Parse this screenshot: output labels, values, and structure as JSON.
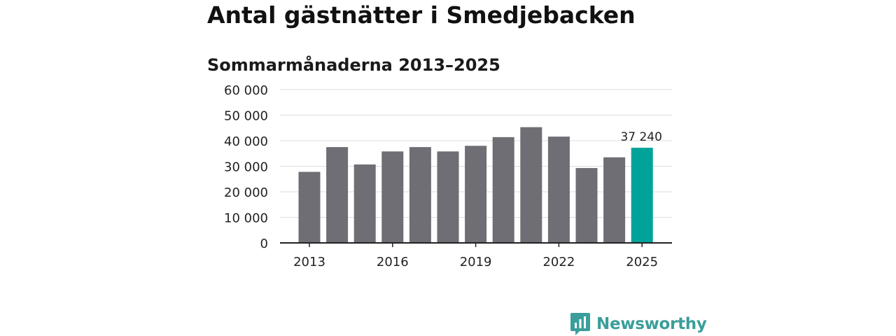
{
  "header": {
    "title": "Antal gästnätter i Smedjebacken",
    "subtitle": "Sommarmånaderna 2013–2025"
  },
  "brand": {
    "name": "Newsworthy",
    "icon": "newsworthy-logo-icon",
    "color": "#3a9e9a"
  },
  "colors": {
    "bar": "#6f6e74",
    "highlight": "#00a39a",
    "grid": "#dddddd",
    "axis": "#222222"
  },
  "chart_data": {
    "type": "bar",
    "title": "",
    "xlabel": "",
    "ylabel": "",
    "categories": [
      "2013",
      "2014",
      "2015",
      "2016",
      "2017",
      "2018",
      "2019",
      "2020",
      "2021",
      "2022",
      "2023",
      "2024",
      "2025"
    ],
    "values": [
      27800,
      37500,
      30700,
      35800,
      37500,
      35800,
      38000,
      41400,
      45300,
      41600,
      29300,
      33500,
      37240
    ],
    "ylim": [
      0,
      60000
    ],
    "yticks": [
      {
        "value": 0,
        "label": "0"
      },
      {
        "value": 10000,
        "label": "10 000"
      },
      {
        "value": 20000,
        "label": "20 000"
      },
      {
        "value": 30000,
        "label": "30 000"
      },
      {
        "value": 40000,
        "label": "40 000"
      },
      {
        "value": 50000,
        "label": "50 000"
      },
      {
        "value": 60000,
        "label": "60 000"
      }
    ],
    "xticks": [
      "2013",
      "2016",
      "2019",
      "2022",
      "2025"
    ],
    "highlight_index": 12,
    "data_labels": [
      {
        "index": 12,
        "label": "37 240"
      }
    ],
    "grid": true,
    "legend": "none"
  }
}
